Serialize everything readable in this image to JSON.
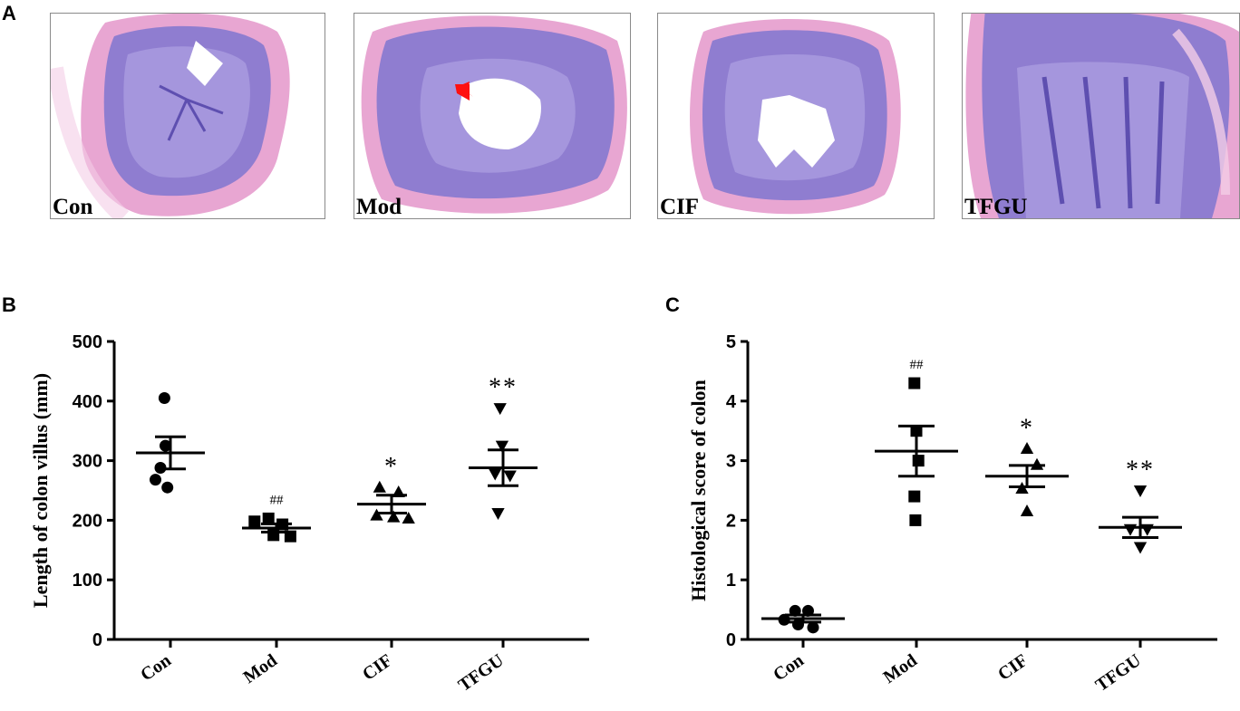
{
  "panel_letters": {
    "a": "A",
    "b": "B",
    "c": "C"
  },
  "histology": [
    {
      "label": "Con"
    },
    {
      "label": "Mod"
    },
    {
      "label": "CIF"
    },
    {
      "label": "TFGU"
    }
  ],
  "colors": {
    "tissue_pink": "#e8a6d2",
    "tissue_pink_light": "#f3cde6",
    "mucosa_purple": "#8f7dd0",
    "mucosa_dark": "#5e4fb0",
    "arrow_red": "#ff1010",
    "ink": "#000000"
  },
  "chart_data": [
    {
      "type": "scatter",
      "title": "",
      "panel": "B",
      "xlabel": "",
      "ylabel": "Length of colon villus (mm)",
      "categories": [
        "Con",
        "Mod",
        "CIF",
        "TFGU"
      ],
      "ylim": [
        0,
        500
      ],
      "yticks": [
        0,
        100,
        200,
        300,
        400,
        500
      ],
      "markers": [
        "circle",
        "square",
        "triangle-up",
        "triangle-down"
      ],
      "points": [
        [
          {
            "dx": -0.06,
            "y": 405
          },
          {
            "dx": -0.05,
            "y": 325
          },
          {
            "dx": -0.1,
            "y": 288
          },
          {
            "dx": -0.15,
            "y": 268
          },
          {
            "dx": -0.03,
            "y": 255
          }
        ],
        [
          {
            "dx": -0.22,
            "y": 198
          },
          {
            "dx": -0.08,
            "y": 203
          },
          {
            "dx": 0.06,
            "y": 193
          },
          {
            "dx": -0.03,
            "y": 175
          },
          {
            "dx": 0.14,
            "y": 173
          }
        ],
        [
          {
            "dx": -0.12,
            "y": 255
          },
          {
            "dx": 0.07,
            "y": 247
          },
          {
            "dx": -0.15,
            "y": 208
          },
          {
            "dx": 0.02,
            "y": 205
          },
          {
            "dx": 0.17,
            "y": 203
          }
        ],
        [
          {
            "dx": -0.03,
            "y": 388
          },
          {
            "dx": -0.01,
            "y": 325
          },
          {
            "dx": -0.08,
            "y": 278
          },
          {
            "dx": 0.07,
            "y": 275
          },
          {
            "dx": -0.05,
            "y": 212
          }
        ]
      ],
      "means": [
        313,
        187,
        227,
        288
      ],
      "sems": [
        27,
        7,
        15,
        30
      ],
      "annotations": [
        "",
        "##",
        "*",
        "**"
      ]
    },
    {
      "type": "scatter",
      "title": "",
      "panel": "C",
      "xlabel": "",
      "ylabel": "Histological score of colon",
      "categories": [
        "Con",
        "Mod",
        "CIF",
        "TFGU"
      ],
      "ylim": [
        0,
        5
      ],
      "yticks": [
        0,
        1,
        2,
        3,
        4,
        5
      ],
      "markers": [
        "circle",
        "square",
        "triangle-up",
        "triangle-down"
      ],
      "points": [
        [
          {
            "dx": -0.08,
            "y": 0.48
          },
          {
            "dx": 0.05,
            "y": 0.48
          },
          {
            "dx": -0.19,
            "y": 0.33
          },
          {
            "dx": -0.05,
            "y": 0.25
          },
          {
            "dx": 0.1,
            "y": 0.2
          }
        ],
        [
          {
            "dx": -0.02,
            "y": 4.3
          },
          {
            "dx": 0.0,
            "y": 3.5
          },
          {
            "dx": 0.02,
            "y": 3.0
          },
          {
            "dx": -0.02,
            "y": 2.4
          },
          {
            "dx": -0.01,
            "y": 2.0
          }
        ],
        [
          {
            "dx": 0.0,
            "y": 3.2
          },
          {
            "dx": 0.1,
            "y": 2.93
          },
          {
            "dx": -0.05,
            "y": 2.53
          },
          {
            "dx": 0.0,
            "y": 2.15
          }
        ],
        [
          {
            "dx": 0.0,
            "y": 2.5
          },
          {
            "dx": -0.1,
            "y": 1.85
          },
          {
            "dx": 0.07,
            "y": 1.85
          },
          {
            "dx": 0.0,
            "y": 1.55
          }
        ]
      ],
      "means": [
        0.35,
        3.16,
        2.74,
        1.88
      ],
      "sems": [
        0.06,
        0.42,
        0.18,
        0.17
      ],
      "annotations": [
        "",
        "##",
        "*",
        "**"
      ]
    }
  ]
}
